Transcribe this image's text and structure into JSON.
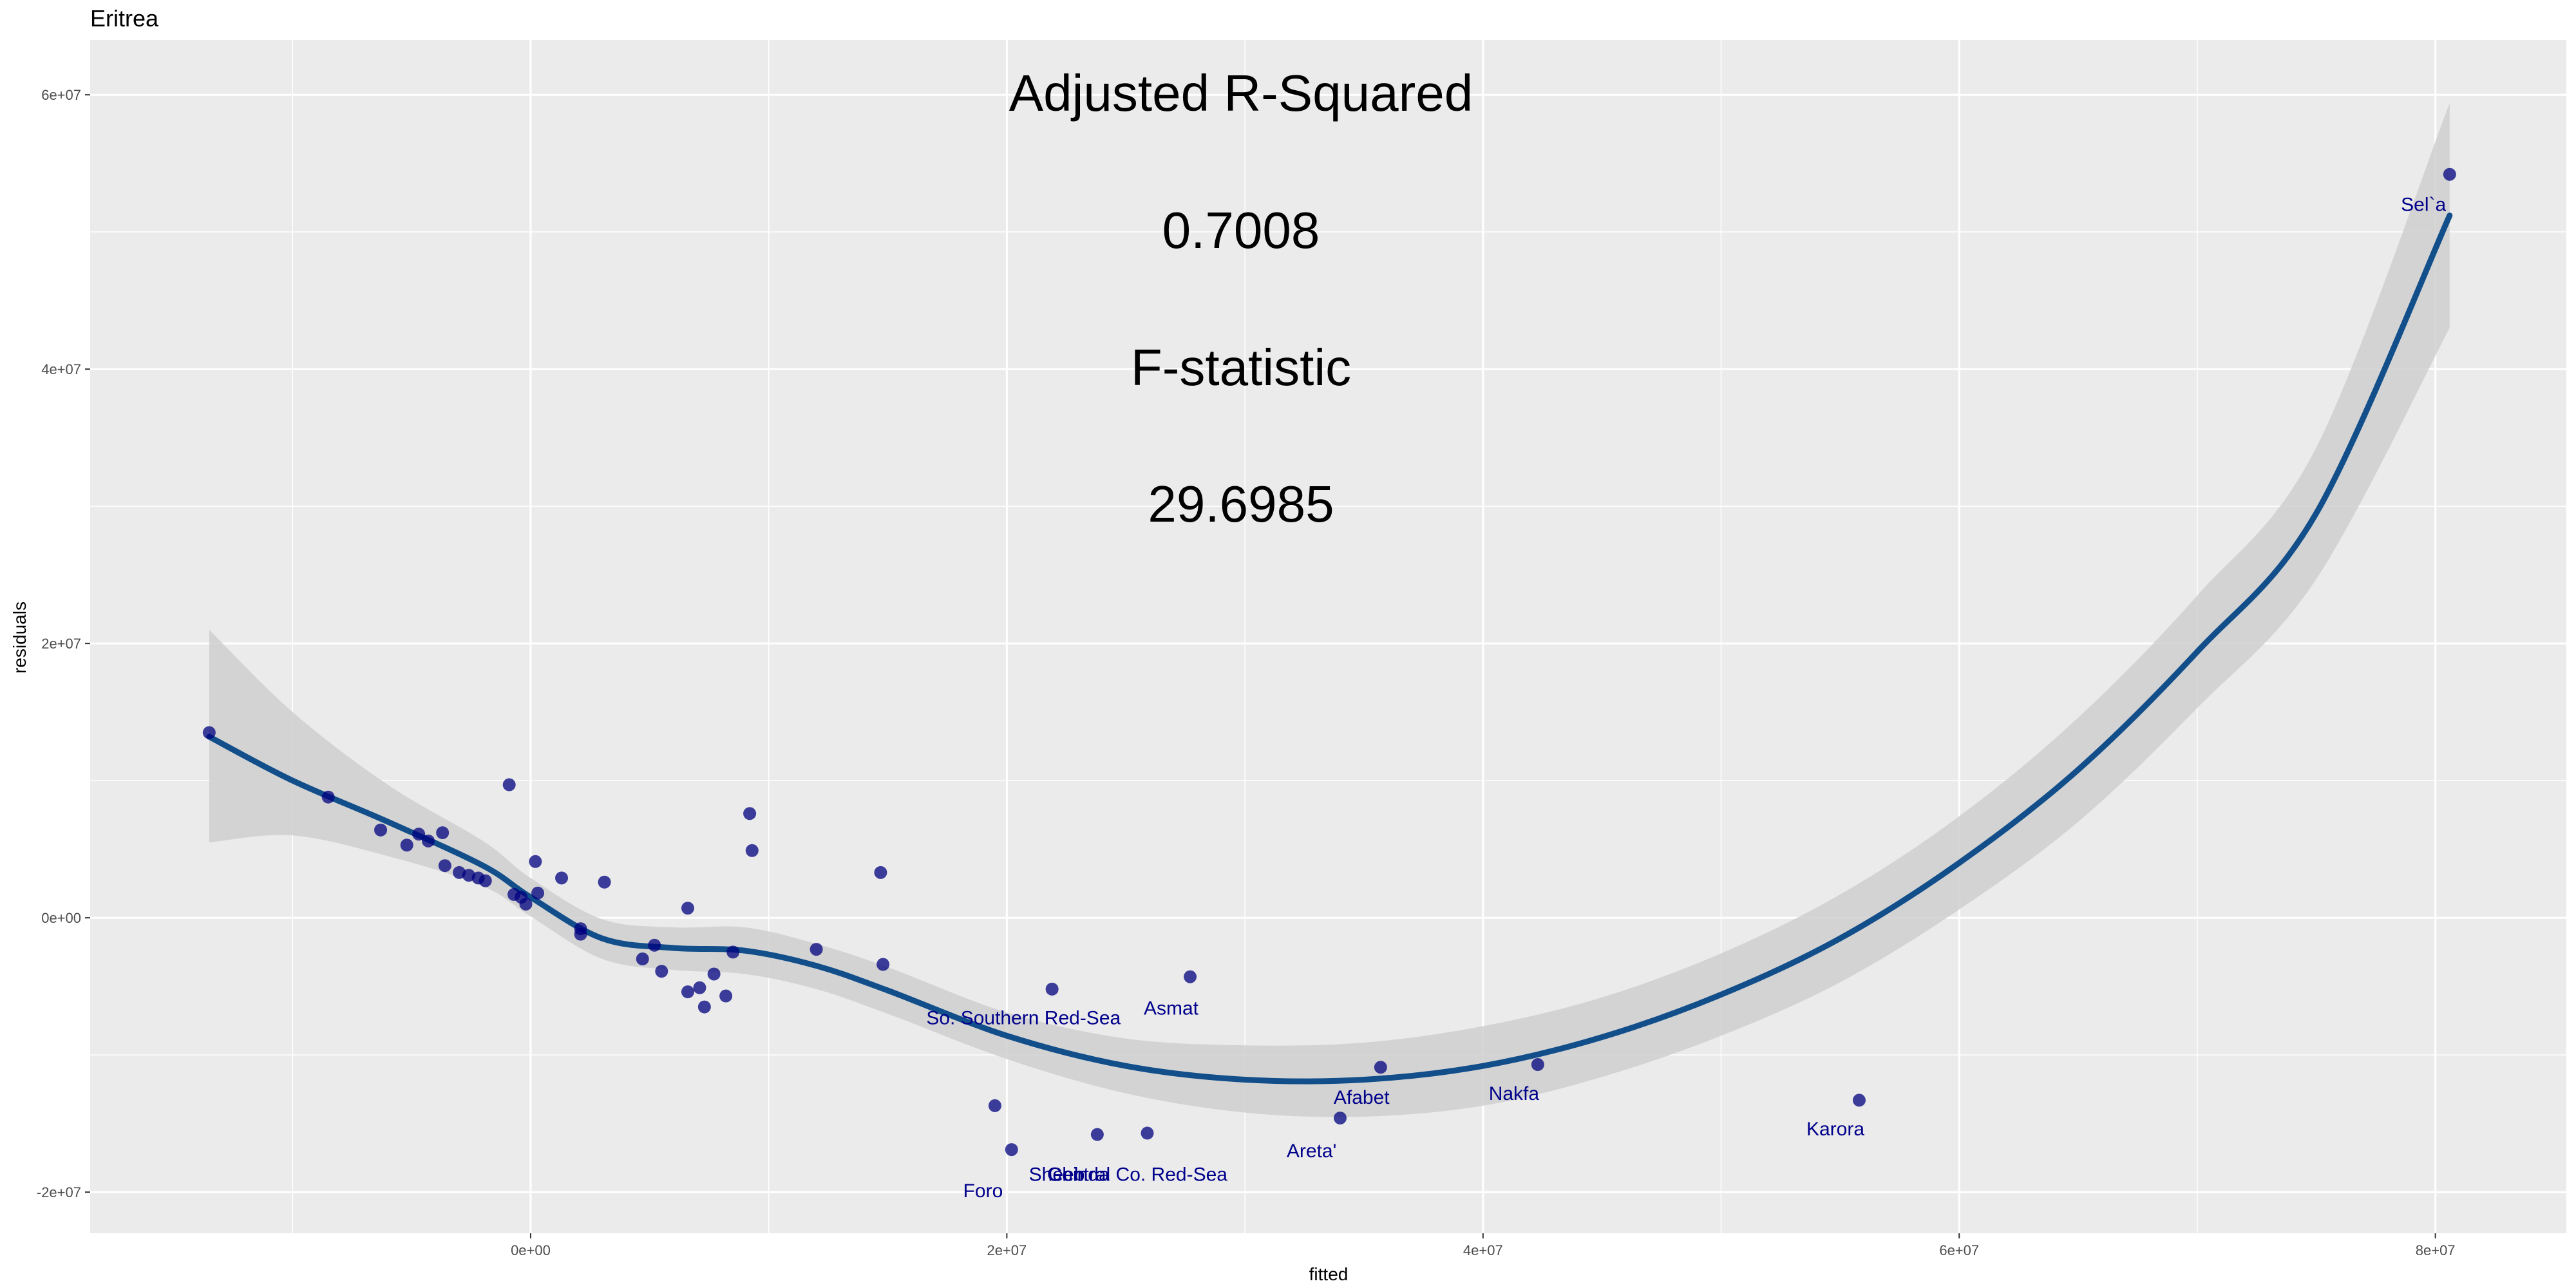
{
  "chart_data": {
    "type": "scatter",
    "title": "Eritrea",
    "xlabel": "fitted",
    "ylabel": "residuals",
    "xlim": [
      -18500000,
      85500000
    ],
    "ylim": [
      -23000000,
      64000000
    ],
    "x_ticks": [
      0,
      20000000,
      40000000,
      60000000,
      80000000
    ],
    "x_tick_labels": [
      "0e+00",
      "2e+07",
      "4e+07",
      "6e+07",
      "8e+07"
    ],
    "y_ticks": [
      -20000000,
      0,
      20000000,
      40000000,
      60000000
    ],
    "y_tick_labels": [
      "-2e+07",
      "0e+00",
      "2e+07",
      "4e+07",
      "6e+07"
    ],
    "grid": true,
    "annotations": [
      "Adjusted R-Squared",
      "0.7008",
      "F-statistic",
      "29.6985"
    ],
    "colors": {
      "panel_bg": "#ebebeb",
      "grid": "#ffffff",
      "points": "#00007f",
      "smooth_line": "#114e8a",
      "ribbon": "#cfcfcf",
      "label": "#00008b"
    },
    "points": [
      {
        "x": -13500000,
        "y": 13500000
      },
      {
        "x": -8500000,
        "y": 8800000
      },
      {
        "x": -6300000,
        "y": 6400000
      },
      {
        "x": -5200000,
        "y": 5300000
      },
      {
        "x": -4700000,
        "y": 6100000
      },
      {
        "x": -4300000,
        "y": 5600000
      },
      {
        "x": -3700000,
        "y": 6200000
      },
      {
        "x": -3600000,
        "y": 3800000
      },
      {
        "x": -3000000,
        "y": 3300000
      },
      {
        "x": -2600000,
        "y": 3100000
      },
      {
        "x": -2200000,
        "y": 2900000
      },
      {
        "x": -1900000,
        "y": 2700000
      },
      {
        "x": -900000,
        "y": 9700000
      },
      {
        "x": -700000,
        "y": 1700000
      },
      {
        "x": -400000,
        "y": 1500000
      },
      {
        "x": -200000,
        "y": 1000000
      },
      {
        "x": 200000,
        "y": 4100000
      },
      {
        "x": 300000,
        "y": 1800000
      },
      {
        "x": 1300000,
        "y": 2900000
      },
      {
        "x": 2100000,
        "y": -800000
      },
      {
        "x": 2100000,
        "y": -1200000
      },
      {
        "x": 3100000,
        "y": 2600000
      },
      {
        "x": 4700000,
        "y": -3000000
      },
      {
        "x": 5200000,
        "y": -2000000
      },
      {
        "x": 5500000,
        "y": -3900000
      },
      {
        "x": 6600000,
        "y": 700000
      },
      {
        "x": 6600000,
        "y": -5400000
      },
      {
        "x": 7100000,
        "y": -5100000
      },
      {
        "x": 7300000,
        "y": -6500000
      },
      {
        "x": 7700000,
        "y": -4100000
      },
      {
        "x": 8200000,
        "y": -5700000
      },
      {
        "x": 8500000,
        "y": -2500000
      },
      {
        "x": 9200000,
        "y": 7600000
      },
      {
        "x": 9300000,
        "y": 4900000
      },
      {
        "x": 12000000,
        "y": -2300000
      },
      {
        "x": 14700000,
        "y": 3300000
      },
      {
        "x": 14800000,
        "y": -3400000
      },
      {
        "x": 19500000,
        "y": -13700000
      },
      {
        "x": 20200000,
        "y": -16900000
      },
      {
        "x": 21900000,
        "y": -5200000
      },
      {
        "x": 23800000,
        "y": -15800000
      },
      {
        "x": 25900000,
        "y": -15700000
      },
      {
        "x": 27700000,
        "y": -4300000
      },
      {
        "x": 34000000,
        "y": -14600000
      },
      {
        "x": 35700000,
        "y": -10900000
      },
      {
        "x": 42300000,
        "y": -10700000
      },
      {
        "x": 55800000,
        "y": -13300000
      },
      {
        "x": 80600000,
        "y": 54200000
      }
    ],
    "labels": [
      {
        "text": "Sel`a",
        "x": 79500000,
        "y": 52000000
      },
      {
        "text": "So. Southern Red-Sea",
        "x": 20700000,
        "y": -7300000
      },
      {
        "text": "Asmat",
        "x": 26900000,
        "y": -6600000
      },
      {
        "text": "Afabet",
        "x": 34900000,
        "y": -13100000
      },
      {
        "text": "Nakfa",
        "x": 41300000,
        "y": -12800000
      },
      {
        "text": "Areta'",
        "x": 32800000,
        "y": -17000000
      },
      {
        "text": "Karora",
        "x": 54800000,
        "y": -15400000
      },
      {
        "text": "Foro",
        "x": 19000000,
        "y": -19900000
      },
      {
        "text": "Sheeb",
        "x": 22100000,
        "y": -18700000
      },
      {
        "text": "Central Co. Red-Sea",
        "x": 25500000,
        "y": -18700000
      },
      {
        "text": "Ghinda",
        "x": 23000000,
        "y": -18700000
      }
    ],
    "smooth_fit": {
      "x": [
        -13500000,
        -10000000,
        -6000000,
        -2000000,
        0,
        3000000,
        6000000,
        9000000,
        12000000,
        15000000,
        20000000,
        25000000,
        30000000,
        35000000,
        40000000,
        45000000,
        50000000,
        55000000,
        60000000,
        65000000,
        70000000,
        75000000,
        80600000
      ],
      "y": [
        13200000,
        10000000,
        7000000,
        3800000,
        1500000,
        -1500000,
        -2200000,
        -2400000,
        -3500000,
        -5300000,
        -8600000,
        -10800000,
        -11800000,
        -11800000,
        -10800000,
        -8700000,
        -5600000,
        -1500000,
        4000000,
        10800000,
        19400000,
        29500000,
        51200000
      ],
      "lower": [
        5500000,
        6000000,
        4500000,
        2300000,
        100000,
        -3000000,
        -3800000,
        -4100000,
        -5200000,
        -7000000,
        -10300000,
        -12800000,
        -14200000,
        -14500000,
        -13700000,
        -11600000,
        -8600000,
        -4700000,
        600000,
        7000000,
        15300000,
        24700000,
        43000000
      ],
      "upper": [
        21000000,
        15000000,
        9700000,
        5600000,
        2900000,
        -100000,
        -700000,
        -700000,
        -1900000,
        -3600000,
        -6900000,
        -8800000,
        -9300000,
        -9100000,
        -7900000,
        -5800000,
        -2600000,
        1700000,
        7400000,
        14600000,
        23500000,
        34300000,
        59400000
      ]
    }
  }
}
